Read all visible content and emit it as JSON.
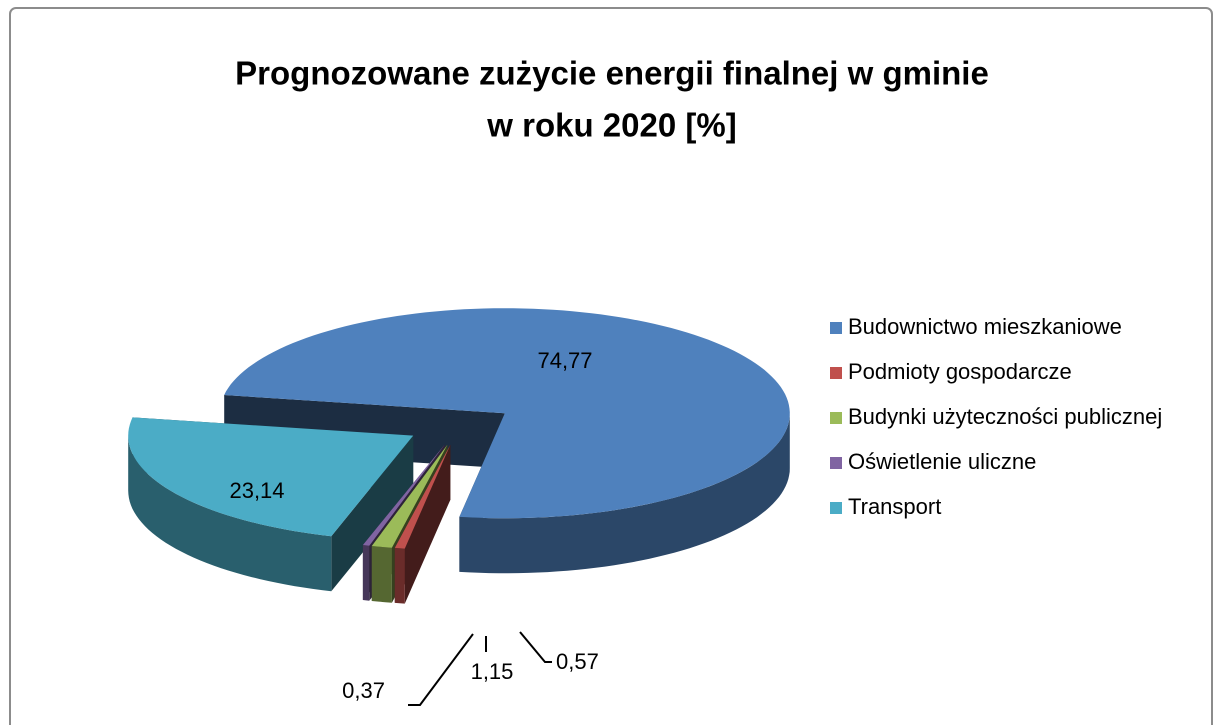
{
  "chart_data": {
    "type": "pie3d",
    "title": [
      "Prognozowane zużycie energii finalnej w gminie",
      "w roku 2020 [%]"
    ],
    "categories": [
      "Budownictwo mieszkaniowe",
      "Podmioty gospodarcze",
      "Budynki użyteczności publicznej",
      "Oświetlenie uliczne",
      "Transport"
    ],
    "values": [
      74.77,
      0.57,
      1.15,
      0.37,
      23.14
    ],
    "value_labels": [
      "74,77",
      "0,57",
      "1,15",
      "0,37",
      "23,14"
    ],
    "colors": [
      "#4f81bd",
      "#c0504d",
      "#9bbb59",
      "#8064a2",
      "#4bacc6"
    ],
    "legend": "right"
  }
}
